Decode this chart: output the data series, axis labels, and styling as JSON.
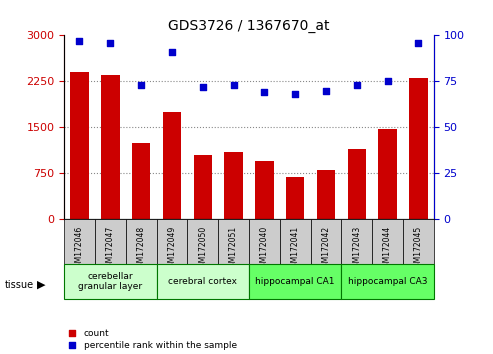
{
  "title": "GDS3726 / 1367670_at",
  "samples": [
    "GSM172046",
    "GSM172047",
    "GSM172048",
    "GSM172049",
    "GSM172050",
    "GSM172051",
    "GSM172040",
    "GSM172041",
    "GSM172042",
    "GSM172043",
    "GSM172044",
    "GSM172045"
  ],
  "counts": [
    2400,
    2350,
    1250,
    1750,
    1050,
    1100,
    950,
    700,
    800,
    1150,
    1480,
    2300
  ],
  "percentiles": [
    97,
    96,
    73,
    91,
    72,
    73,
    69,
    68,
    70,
    73,
    75,
    96
  ],
  "ylim_left": [
    0,
    3000
  ],
  "ylim_right": [
    0,
    100
  ],
  "yticks_left": [
    0,
    750,
    1500,
    2250,
    3000
  ],
  "yticks_right": [
    0,
    25,
    50,
    75,
    100
  ],
  "tissue_groups": [
    {
      "label": "cerebellar\ngranular layer",
      "start": 0,
      "end": 3,
      "color": "#ccffcc"
    },
    {
      "label": "cerebral cortex",
      "start": 3,
      "end": 6,
      "color": "#ccffcc"
    },
    {
      "label": "hippocampal CA1",
      "start": 6,
      "end": 9,
      "color": "#66ff66"
    },
    {
      "label": "hippocampal CA3",
      "start": 9,
      "end": 12,
      "color": "#66ff66"
    }
  ],
  "bar_color": "#cc0000",
  "dot_color": "#0000cc",
  "background_color": "#ffffff",
  "plot_bg_color": "#ffffff",
  "grid_color": "#888888",
  "tick_bg_color": "#cccccc",
  "tissue_label": "tissue",
  "legend_count": "count",
  "legend_percentile": "percentile rank within the sample"
}
